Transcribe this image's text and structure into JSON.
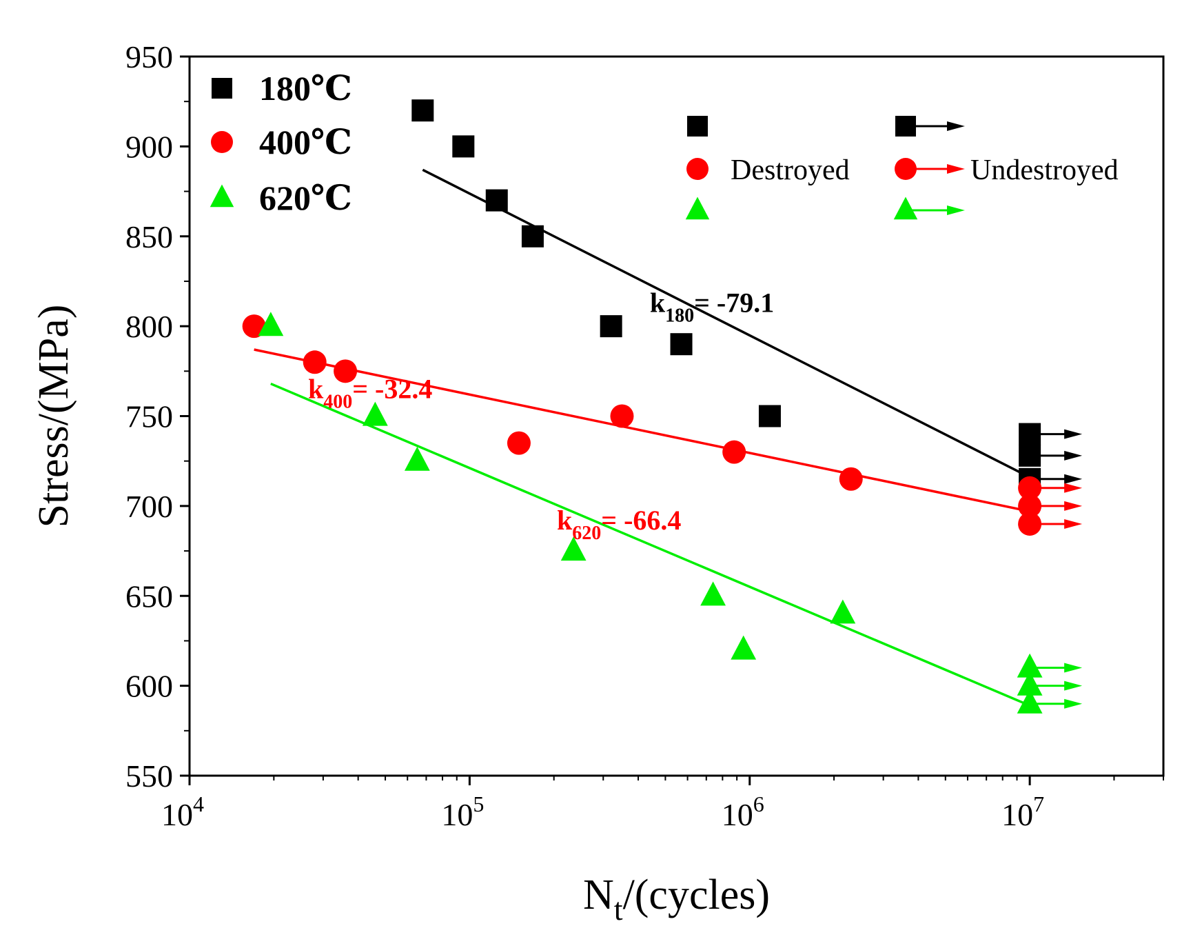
{
  "chart_data": {
    "type": "scatter",
    "title": "",
    "xlabel": {
      "main": "N",
      "sub": "t",
      "rest": "/(cycles)"
    },
    "ylabel": "Stress/(MPa)",
    "xscale": "log",
    "xlim": [
      10000,
      30000000
    ],
    "ylim": [
      550,
      950
    ],
    "x_ticks": [
      {
        "value": 10000,
        "base": "10",
        "exp": "4"
      },
      {
        "value": 100000,
        "base": "10",
        "exp": "5"
      },
      {
        "value": 1000000,
        "base": "10",
        "exp": "6"
      },
      {
        "value": 10000000,
        "base": "10",
        "exp": "7"
      }
    ],
    "y_ticks": [
      550,
      600,
      650,
      700,
      750,
      800,
      850,
      900,
      950
    ],
    "legend": {
      "placement": "top-left",
      "entries": [
        {
          "label": "180℃",
          "marker": "square",
          "color": "#000000"
        },
        {
          "label": "400℃",
          "marker": "circle",
          "color": "#ff0000"
        },
        {
          "label": "620℃",
          "marker": "triangle",
          "color": "#00ee00"
        }
      ]
    },
    "status_legend": {
      "destroyed_label": "Destroyed",
      "undestroyed_label": "Undestroyed"
    },
    "series": [
      {
        "name": "180℃",
        "marker": "square",
        "color": "#000000",
        "destroyed": [
          [
            68000,
            920
          ],
          [
            95000,
            900
          ],
          [
            125000,
            870
          ],
          [
            168000,
            850
          ],
          [
            320000,
            800
          ],
          [
            570000,
            790
          ],
          [
            1180000,
            750
          ]
        ],
        "runouts": [
          [
            10000000,
            740
          ],
          [
            10000000,
            728
          ],
          [
            10000000,
            715
          ]
        ],
        "fit": {
          "x": [
            68000,
            10000000
          ],
          "y": [
            887,
            716
          ]
        },
        "slope_label": {
          "k": "k",
          "sub": "180",
          "rest": "= -79.1",
          "anchor": [
            440000,
            808
          ],
          "color": "#000000"
        }
      },
      {
        "name": "400℃",
        "marker": "circle",
        "color": "#ff0000",
        "destroyed": [
          [
            17000,
            800
          ],
          [
            28000,
            780
          ],
          [
            36000,
            775
          ],
          [
            150000,
            735
          ],
          [
            350000,
            750
          ],
          [
            880000,
            730
          ],
          [
            2300000,
            715
          ]
        ],
        "runouts": [
          [
            10000000,
            710
          ],
          [
            10000000,
            700
          ],
          [
            10000000,
            690
          ]
        ],
        "fit": {
          "x": [
            17000,
            10000000
          ],
          "y": [
            787,
            697
          ]
        },
        "slope_label": {
          "k": "k",
          "sub": "400",
          "rest": "= -32.4",
          "anchor": [
            26500,
            760
          ],
          "color": "#ff0000"
        }
      },
      {
        "name": "620℃",
        "marker": "triangle",
        "color": "#00ee00",
        "destroyed": [
          [
            19500,
            800
          ],
          [
            46000,
            750
          ],
          [
            65000,
            725
          ],
          [
            235000,
            675
          ],
          [
            740000,
            650
          ],
          [
            950000,
            620
          ],
          [
            2150000,
            640
          ]
        ],
        "runouts": [
          [
            10000000,
            610
          ],
          [
            10000000,
            600
          ],
          [
            10000000,
            590
          ]
        ],
        "fit": {
          "x": [
            19500,
            10000000
          ],
          "y": [
            768,
            589
          ]
        },
        "slope_label": {
          "k": "k",
          "sub": "620",
          "rest": "= -66.4",
          "anchor": [
            205000,
            687
          ],
          "color": "#ff0000"
        }
      }
    ]
  }
}
